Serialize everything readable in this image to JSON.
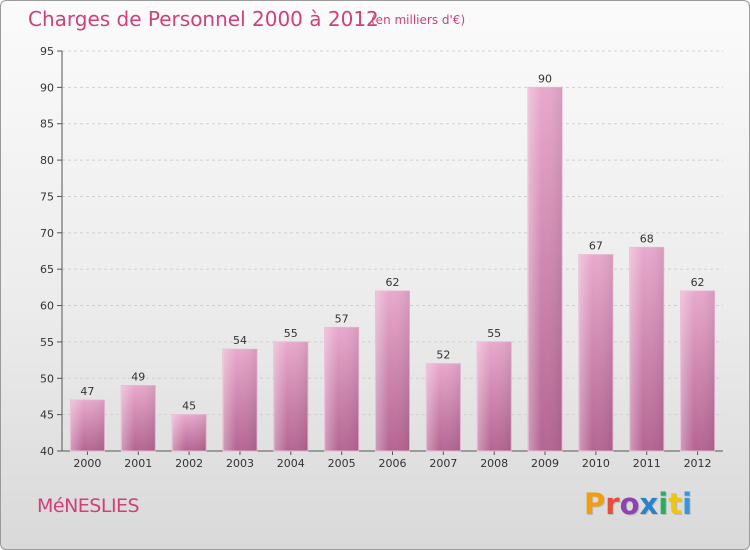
{
  "header": {
    "title": "Charges de Personnel 2000 à 2012",
    "subtitle": "(en milliers d'€)"
  },
  "footer": {
    "town": "MéNESLIES",
    "brand": "Proxiti",
    "brand_colors": [
      "#f39c12",
      "#e74c3c",
      "#8e44ad",
      "#2c82c9",
      "#27ae60",
      "#f1c40f",
      "#3498db"
    ]
  },
  "chart_data": {
    "type": "bar",
    "title": "Charges de Personnel 2000 à 2012",
    "subtitle": "(en milliers d'€)",
    "categories": [
      "2000",
      "2001",
      "2002",
      "2003",
      "2004",
      "2005",
      "2006",
      "2007",
      "2008",
      "2009",
      "2010",
      "2011",
      "2012"
    ],
    "values": [
      47,
      49,
      45,
      54,
      55,
      57,
      62,
      52,
      55,
      90,
      67,
      68,
      62
    ],
    "data_labels": [
      "47",
      "49",
      "45",
      "54",
      "55",
      "57",
      "62",
      "52",
      "55",
      "90",
      "67",
      "68",
      "62"
    ],
    "ylim": [
      40,
      95
    ],
    "yticks": [
      "40",
      "45",
      "50",
      "55",
      "60",
      "65",
      "70",
      "75",
      "80",
      "85",
      "90",
      "95"
    ],
    "grid": true,
    "bar_color": "#d67cab",
    "bar_highlight": "#e8a8cc"
  }
}
